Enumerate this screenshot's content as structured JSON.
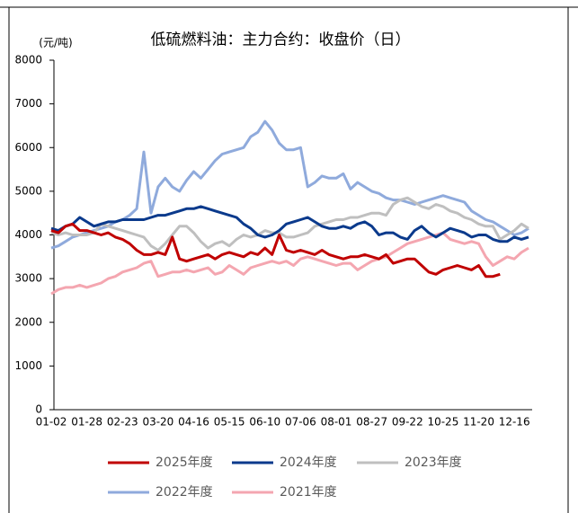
{
  "chart_data": {
    "type": "line",
    "title": "低硫燃料油：主力合约：收盘价（日）",
    "y_label": "(元/吨)",
    "categories": [
      "01-02",
      null,
      null,
      null,
      null,
      "01-28",
      null,
      null,
      null,
      null,
      "02-23",
      null,
      null,
      null,
      null,
      "03-20",
      null,
      null,
      null,
      null,
      "04-16",
      null,
      null,
      null,
      null,
      "05-15",
      null,
      null,
      null,
      null,
      "06-10",
      null,
      null,
      null,
      null,
      "07-06",
      null,
      null,
      null,
      null,
      "08-01",
      null,
      null,
      null,
      null,
      "08-27",
      null,
      null,
      null,
      null,
      "09-22",
      null,
      null,
      null,
      null,
      "10-25",
      null,
      null,
      null,
      null,
      "11-20",
      null,
      null,
      null,
      null,
      "12-16",
      null,
      null
    ],
    "ylim": [
      0,
      8000
    ],
    "yticks": [
      0,
      1000,
      2000,
      3000,
      4000,
      5000,
      6000,
      7000,
      8000
    ],
    "grid": false,
    "legend": "bottom",
    "series": [
      {
        "name": "2025年度",
        "color": "#c00000",
        "values": [
          4100,
          4050,
          4200,
          4250,
          4100,
          4100,
          4050,
          4000,
          4050,
          3950,
          3900,
          3800,
          3650,
          3550,
          3550,
          3600,
          3550,
          3950,
          3450,
          3400,
          3450,
          3500,
          3550,
          3450,
          3550,
          3600,
          3550,
          3500,
          3600,
          3550,
          3700,
          3550,
          4000,
          3650,
          3600,
          3650,
          3600,
          3550,
          3650,
          3550,
          3500,
          3450,
          3500,
          3500,
          3550,
          3500,
          3450,
          3550,
          3350,
          3400,
          3450,
          3450,
          3300,
          3150,
          3100,
          3200,
          3250,
          3300,
          3250,
          3200,
          3300,
          3050,
          3050,
          3100,
          null,
          null,
          null,
          null
        ]
      },
      {
        "name": "2024年度",
        "color": "#0b3a8c",
        "values": [
          4150,
          4100,
          4200,
          4250,
          4400,
          4300,
          4200,
          4250,
          4300,
          4300,
          4350,
          4350,
          4350,
          4350,
          4400,
          4450,
          4450,
          4500,
          4550,
          4600,
          4600,
          4650,
          4600,
          4550,
          4500,
          4450,
          4400,
          4250,
          4150,
          4000,
          3950,
          4000,
          4100,
          4250,
          4300,
          4350,
          4400,
          4300,
          4200,
          4150,
          4150,
          4200,
          4150,
          4250,
          4300,
          4200,
          4000,
          4050,
          4050,
          3950,
          3900,
          4100,
          4200,
          4050,
          3950,
          4050,
          4150,
          4100,
          4050,
          3950,
          4000,
          4000,
          3900,
          3850,
          3850,
          3950,
          3900,
          3950
        ]
      },
      {
        "name": "2023年度",
        "color": "#bfbfbf",
        "values": [
          4050,
          4000,
          4050,
          4000,
          4000,
          4000,
          4050,
          4250,
          4200,
          4150,
          4100,
          4050,
          4000,
          3950,
          3750,
          3650,
          3800,
          4000,
          4200,
          4200,
          4050,
          3850,
          3700,
          3800,
          3850,
          3750,
          3900,
          4000,
          3950,
          4000,
          4100,
          4050,
          4050,
          3950,
          3950,
          4000,
          4050,
          4200,
          4250,
          4300,
          4350,
          4350,
          4400,
          4400,
          4450,
          4500,
          4500,
          4450,
          4700,
          4800,
          4850,
          4750,
          4650,
          4600,
          4700,
          4650,
          4550,
          4500,
          4400,
          4350,
          4250,
          4200,
          4200,
          3900,
          4000,
          4100,
          4250,
          4150
        ]
      },
      {
        "name": "2022年度",
        "color": "#8faadc",
        "values": [
          3700,
          3750,
          3850,
          3950,
          4000,
          4050,
          4100,
          4150,
          4200,
          4300,
          4350,
          4450,
          4600,
          5900,
          4500,
          5100,
          5300,
          5100,
          5000,
          5250,
          5450,
          5300,
          5500,
          5700,
          5850,
          5900,
          5950,
          6000,
          6250,
          6350,
          6600,
          6400,
          6100,
          5950,
          5950,
          6000,
          5100,
          5200,
          5350,
          5300,
          5300,
          5400,
          5050,
          5200,
          5100,
          5000,
          4950,
          4850,
          4800,
          4800,
          4750,
          4700,
          4750,
          4800,
          4850,
          4900,
          4850,
          4800,
          4750,
          4550,
          4450,
          4350,
          4300,
          4200,
          4100,
          4000,
          4050,
          4150
        ]
      },
      {
        "name": "2021年度",
        "color": "#f4a6b0",
        "values": [
          2650,
          2750,
          2800,
          2800,
          2850,
          2800,
          2850,
          2900,
          3000,
          3050,
          3150,
          3200,
          3250,
          3350,
          3400,
          3050,
          3100,
          3150,
          3150,
          3200,
          3150,
          3200,
          3250,
          3100,
          3150,
          3300,
          3200,
          3100,
          3250,
          3300,
          3350,
          3400,
          3350,
          3400,
          3300,
          3450,
          3500,
          3450,
          3400,
          3350,
          3300,
          3350,
          3350,
          3200,
          3300,
          3400,
          3450,
          3500,
          3600,
          3700,
          3800,
          3850,
          3900,
          3950,
          4000,
          4050,
          3900,
          3850,
          3800,
          3850,
          3800,
          3500,
          3300,
          3400,
          3500,
          3450,
          3600,
          3700
        ]
      }
    ]
  }
}
